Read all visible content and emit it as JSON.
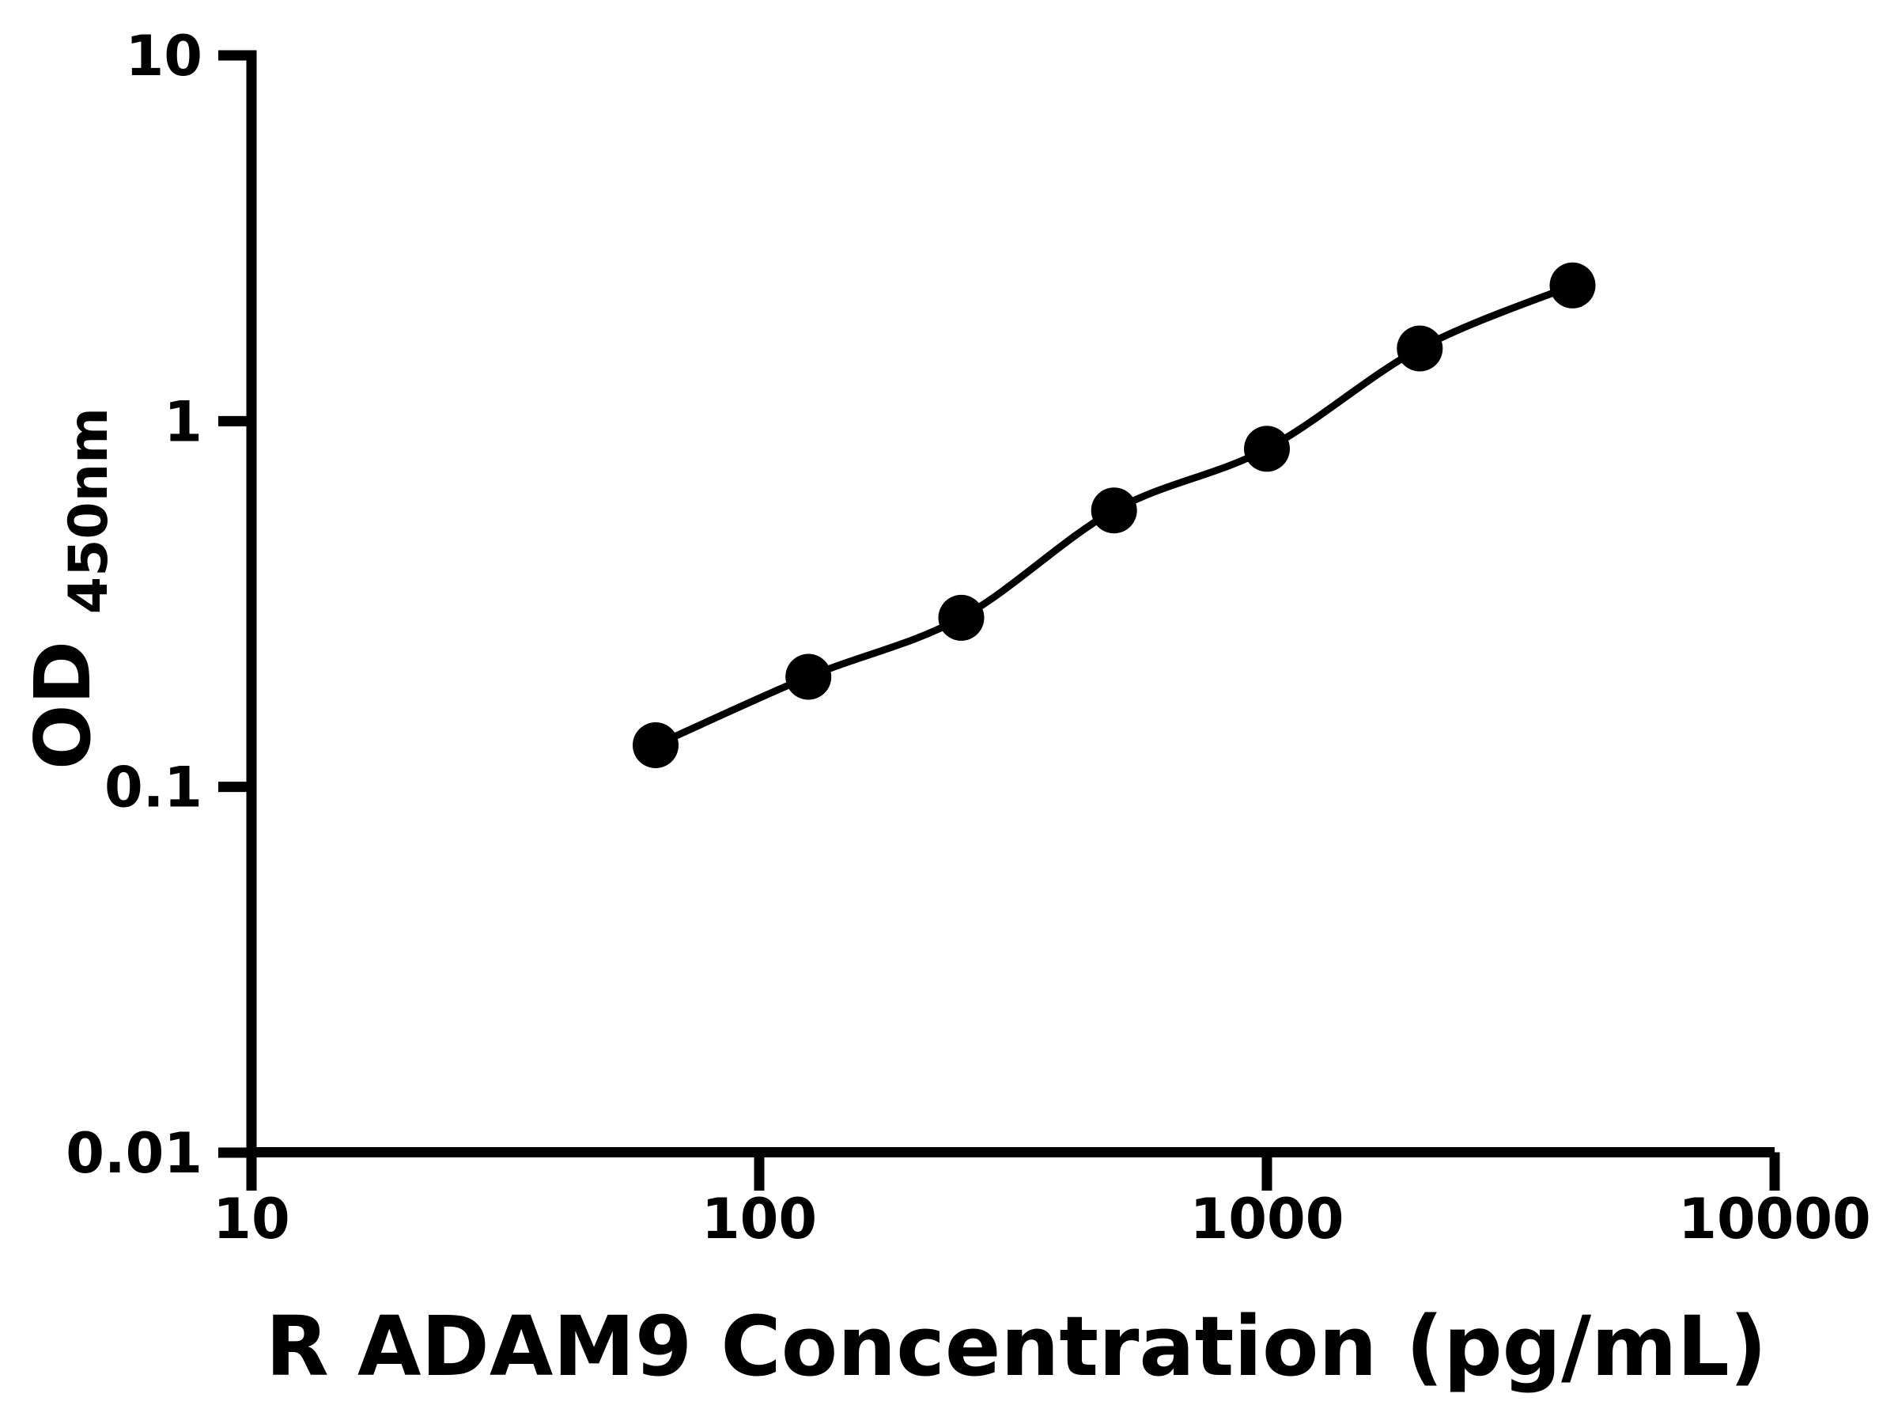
{
  "figure": {
    "background": "#ffffff",
    "ink": "#000000"
  },
  "chart_data": {
    "type": "line",
    "title": "",
    "xlabel": "R ADAM9 Concentration (pg/mL)",
    "ylabel": "OD450nm",
    "ylabel_main": "OD",
    "ylabel_sub": "450nm",
    "x_scale": "log",
    "y_scale": "log",
    "xlim": [
      10,
      10000
    ],
    "ylim": [
      0.01,
      10
    ],
    "x_tick_values": [
      10,
      100,
      1000,
      10000
    ],
    "x_tick_labels": [
      "10",
      "100",
      "1000",
      "10000"
    ],
    "y_tick_values": [
      10,
      1,
      0.1,
      0.01
    ],
    "y_tick_labels": [
      "10",
      "1",
      "0.1",
      "0.01"
    ],
    "grid": false,
    "legend": "none",
    "marker": "filled-circle",
    "line_color": "#000000",
    "marker_color": "#000000",
    "series": [
      {
        "x": [
          62.5,
          125,
          250,
          500,
          1000,
          2000,
          4000
        ],
        "y": [
          0.13,
          0.2,
          0.29,
          0.57,
          0.84,
          1.58,
          2.35
        ]
      }
    ]
  }
}
